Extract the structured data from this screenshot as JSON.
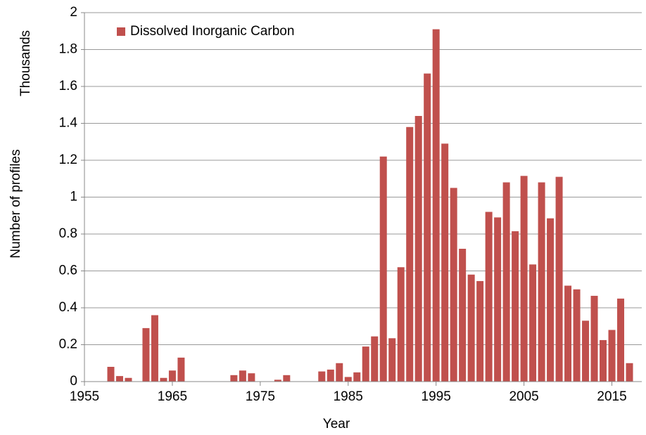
{
  "chart_data": {
    "type": "bar",
    "x": [
      1958,
      1959,
      1960,
      1962,
      1963,
      1964,
      1965,
      1966,
      1972,
      1973,
      1974,
      1977,
      1978,
      1982,
      1983,
      1984,
      1985,
      1986,
      1987,
      1988,
      1989,
      1990,
      1991,
      1992,
      1993,
      1994,
      1995,
      1996,
      1997,
      1998,
      1999,
      2000,
      2001,
      2002,
      2003,
      2004,
      2005,
      2006,
      2007,
      2008,
      2009,
      2010,
      2011,
      2012,
      2013,
      2014,
      2015,
      2016,
      2017
    ],
    "series": [
      {
        "name": "Dissolved Inorganic Carbon",
        "color": "#c0504d",
        "values": [
          0.08,
          0.03,
          0.02,
          0.29,
          0.36,
          0.02,
          0.06,
          0.13,
          0.035,
          0.06,
          0.045,
          0.01,
          0.035,
          0.055,
          0.065,
          0.1,
          0.025,
          0.05,
          0.19,
          0.245,
          1.22,
          0.235,
          0.62,
          1.38,
          1.44,
          1.67,
          1.91,
          1.29,
          1.05,
          0.72,
          0.58,
          0.545,
          0.92,
          0.89,
          1.08,
          0.815,
          1.115,
          0.635,
          1.08,
          0.885,
          1.11,
          0.52,
          0.5,
          0.33,
          0.465,
          0.225,
          0.28,
          0.45,
          0.1
        ]
      }
    ],
    "xlabel": "Year",
    "ylabel": "Number  of profiles",
    "yunit_label": "Thousands",
    "xlim": [
      1955,
      2018.4
    ],
    "xticks": [
      1955,
      1965,
      1975,
      1985,
      1995,
      2005,
      2015
    ],
    "ylim": [
      0,
      2
    ],
    "yticks": [
      0,
      0.2,
      0.4,
      0.6,
      0.8,
      1,
      1.2,
      1.4,
      1.6,
      1.8,
      2
    ],
    "grid": true,
    "legend": "upper left"
  }
}
